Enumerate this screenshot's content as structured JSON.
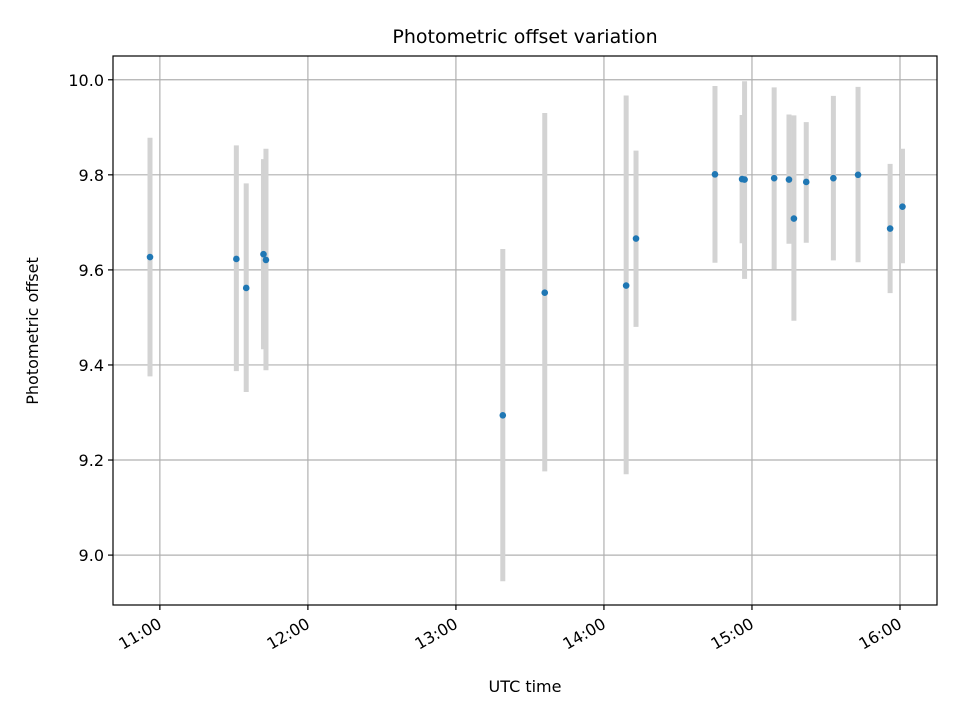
{
  "chart_data": {
    "type": "scatter",
    "title": "Photometric offset variation",
    "xlabel": "UTC time",
    "ylabel": "Photometric offset",
    "xlim": [
      "10:41",
      "16:15"
    ],
    "ylim": [
      8.895,
      10.05
    ],
    "x_ticks": [
      "11:00",
      "12:00",
      "13:00",
      "14:00",
      "15:00",
      "16:00"
    ],
    "y_ticks": [
      9.0,
      9.2,
      9.4,
      9.6,
      9.8,
      10.0
    ],
    "y_tick_labels": [
      "9.0",
      "9.2",
      "9.4",
      "9.6",
      "9.8",
      "10.0"
    ],
    "grid": true,
    "series": [
      {
        "points": [
          {
            "x": "10:56",
            "y": 9.627,
            "ylow": 9.376,
            "yhigh": 9.878
          },
          {
            "x": "11:31",
            "y": 9.623,
            "ylow": 9.387,
            "yhigh": 9.862
          },
          {
            "x": "11:35",
            "y": 9.562,
            "ylow": 9.343,
            "yhigh": 9.782
          },
          {
            "x": "11:42",
            "y": 9.633,
            "ylow": 9.433,
            "yhigh": 9.833
          },
          {
            "x": "11:43",
            "y": 9.621,
            "ylow": 9.389,
            "yhigh": 9.855
          },
          {
            "x": "13:19",
            "y": 9.294,
            "ylow": 8.945,
            "yhigh": 9.644
          },
          {
            "x": "13:36",
            "y": 9.552,
            "ylow": 9.176,
            "yhigh": 9.93
          },
          {
            "x": "14:09",
            "y": 9.567,
            "ylow": 9.17,
            "yhigh": 9.967
          },
          {
            "x": "14:13",
            "y": 9.666,
            "ylow": 9.48,
            "yhigh": 9.851
          },
          {
            "x": "14:45",
            "y": 9.801,
            "ylow": 9.615,
            "yhigh": 9.987
          },
          {
            "x": "14:56",
            "y": 9.791,
            "ylow": 9.656,
            "yhigh": 9.926
          },
          {
            "x": "14:57",
            "y": 9.79,
            "ylow": 9.581,
            "yhigh": 9.997
          },
          {
            "x": "15:09",
            "y": 9.793,
            "ylow": 9.602,
            "yhigh": 9.984
          },
          {
            "x": "15:15",
            "y": 9.79,
            "ylow": 9.655,
            "yhigh": 9.927
          },
          {
            "x": "15:17",
            "y": 9.708,
            "ylow": 9.493,
            "yhigh": 9.925
          },
          {
            "x": "15:22",
            "y": 9.785,
            "ylow": 9.657,
            "yhigh": 9.911
          },
          {
            "x": "15:33",
            "y": 9.793,
            "ylow": 9.62,
            "yhigh": 9.966
          },
          {
            "x": "15:43",
            "y": 9.8,
            "ylow": 9.616,
            "yhigh": 9.985
          },
          {
            "x": "15:56",
            "y": 9.687,
            "ylow": 9.551,
            "yhigh": 9.823
          },
          {
            "x": "16:01",
            "y": 9.733,
            "ylow": 9.614,
            "yhigh": 9.855
          }
        ]
      }
    ]
  },
  "colors": {
    "point": "#1f77b4",
    "errorbar": "#d3d3d3",
    "grid": "#b0b0b0",
    "axes": "#000000"
  }
}
